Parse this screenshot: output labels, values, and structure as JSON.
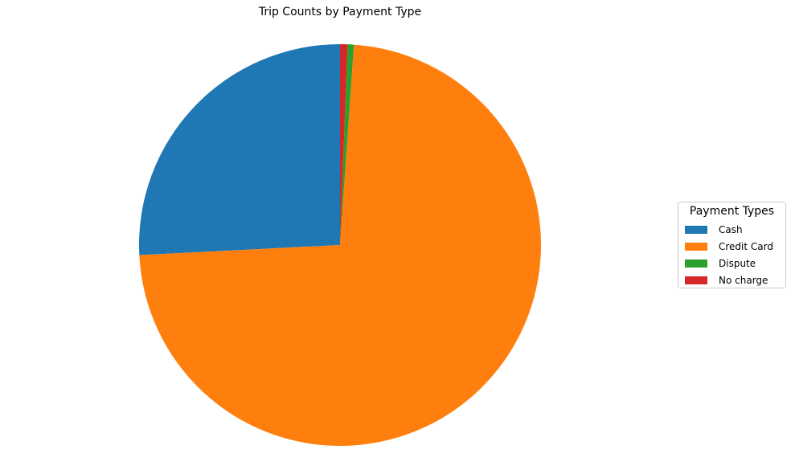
{
  "chart_data": {
    "type": "pie",
    "title": "Trip Counts by Payment Type",
    "categories": [
      "Cash",
      "Credit Card",
      "Dispute",
      "No charge"
    ],
    "values": [
      25.8,
      73.1,
      0.5,
      0.6
    ],
    "colors": [
      "#1f77b4",
      "#ff7f0e",
      "#2ca02c",
      "#d62728"
    ],
    "start_angle_deg": 90,
    "direction": "counterclockwise",
    "legend": {
      "title": "Payment Types",
      "placement": "center-right"
    }
  }
}
